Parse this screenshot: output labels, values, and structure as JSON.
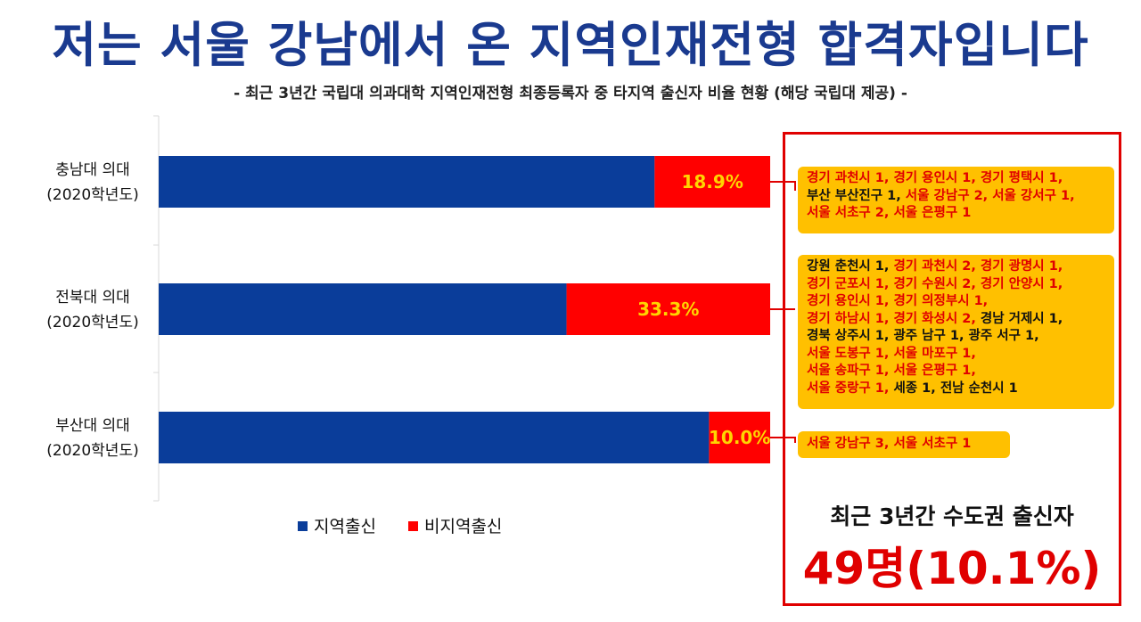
{
  "title": "저는 서울 강남에서 온 지역인재전형 합격자입니다",
  "subtitle": "- 최근 3년간 국립대 의과대학 지역인재전형 최종등록자 중 타지역 출신자 비율 현황 (해당 국립대 제공) -",
  "colors": {
    "local": "#0a3d9a",
    "nonlocal": "#ff0000",
    "note_bg": "#ffc000",
    "title": "#1a3a8f"
  },
  "chart_data": {
    "type": "bar",
    "orientation": "horizontal",
    "stacked": true,
    "categories": [
      [
        "충남대 의대",
        "(2020학년도)"
      ],
      [
        "전북대 의대",
        "(2020학년도)"
      ],
      [
        "부산대 의대",
        "(2020학년도)"
      ]
    ],
    "series": [
      {
        "name": "지역출신",
        "values": [
          81.1,
          66.7,
          90.0
        ]
      },
      {
        "name": "비지역출신",
        "values": [
          18.9,
          33.3,
          10.0
        ],
        "labels": [
          "18.9%",
          "33.3%",
          "10.0%"
        ]
      }
    ],
    "xlim": [
      0,
      100
    ],
    "grid": false,
    "legend_position": "bottom"
  },
  "notes": [
    [
      [
        [
          "경기 과천시 1, 경기 용인시 1, 경기 평택시 1,",
          "red"
        ]
      ],
      [
        [
          "부산 부산진구 1, ",
          "black"
        ],
        [
          "서울 강남구 2, 서울 강서구 1,",
          "red"
        ]
      ],
      [
        [
          "서울 서초구 2, 서울 은평구 1",
          "red"
        ]
      ]
    ],
    [
      [
        [
          "강원 춘천시 1, ",
          "black"
        ],
        [
          "경기 과천시 2, 경기 광명시 1,",
          "red"
        ]
      ],
      [
        [
          "경기 군포시 1, 경기 수원시 2, 경기 안양시 1,",
          "red"
        ]
      ],
      [
        [
          "경기 용인시 1, 경기 의정부시 1,",
          "red"
        ]
      ],
      [
        [
          "경기 하남시 1, 경기 화성시 2, ",
          "red"
        ],
        [
          "경남 거제시 1,",
          "black"
        ]
      ],
      [
        [
          "경북 상주시 1, 광주 남구 1, 광주 서구 1,",
          "black"
        ]
      ],
      [
        [
          "서울 도봉구 1, 서울 마포구 1,",
          "red"
        ]
      ],
      [
        [
          "서울 송파구 1, 서울 은평구 1,",
          "red"
        ]
      ],
      [
        [
          "서울 중랑구 1, ",
          "red"
        ],
        [
          "세종 1, 전남 순천시 1",
          "black"
        ]
      ]
    ],
    [
      [
        [
          "서울 강남구 3, 서울 서초구 1",
          "red"
        ]
      ]
    ]
  ],
  "summary": {
    "label": "최근 3년간 수도권 출신자",
    "value": "49명(10.1%)"
  }
}
